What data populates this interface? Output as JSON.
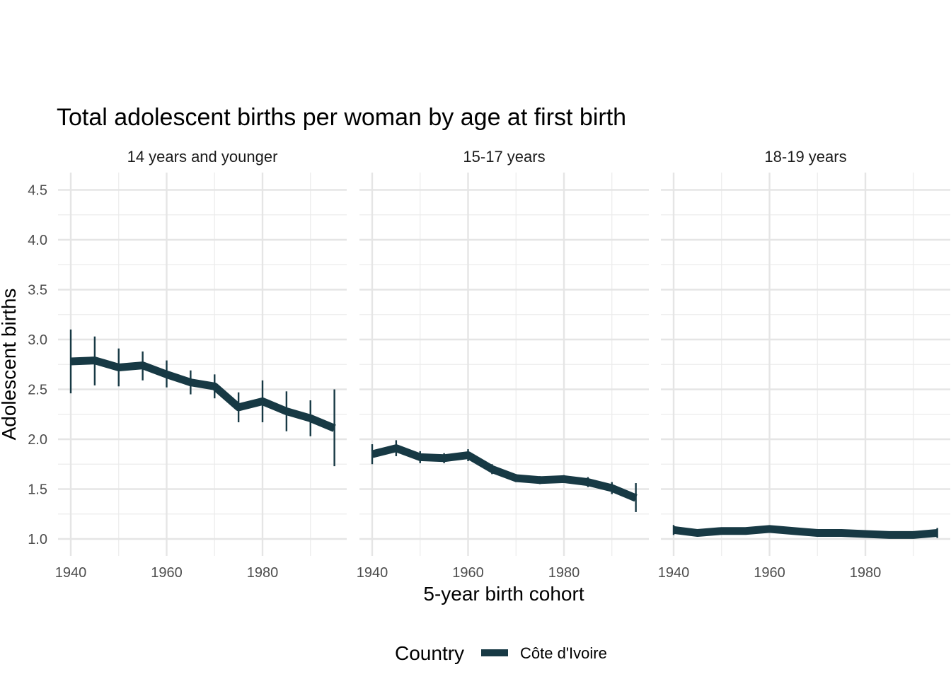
{
  "chart_data": {
    "type": "line",
    "title": "Total adolescent births per woman by age at first birth",
    "xlabel": "5-year birth cohort",
    "ylabel": "Adolescent births",
    "ylim": [
      0.85,
      4.65
    ],
    "yticks": [
      1.0,
      1.5,
      2.0,
      2.5,
      3.0,
      3.5,
      4.0,
      4.5
    ],
    "ytick_labels": [
      "1.0",
      "1.5",
      "2.0",
      "2.5",
      "3.0",
      "3.5",
      "4.0",
      "4.5"
    ],
    "xticks": [
      1940,
      1960,
      1980
    ],
    "xtick_labels": [
      "1940",
      "1960",
      "1980"
    ],
    "grid": true,
    "legend": {
      "title": "Country",
      "position": "bottom"
    },
    "color": "#173944",
    "panels": [
      {
        "label": "14 years and younger",
        "xlim": [
          1940,
          1993
        ],
        "series": [
          {
            "name": "Côte d'Ivoire",
            "x": [
              1940,
              1945,
              1950,
              1955,
              1960,
              1965,
              1970,
              1975,
              1980,
              1985,
              1990,
              1995
            ],
            "y": [
              2.78,
              2.79,
              2.72,
              2.74,
              2.65,
              2.57,
              2.53,
              2.32,
              2.38,
              2.28,
              2.21,
              2.11
            ],
            "lower": [
              2.46,
              2.54,
              2.53,
              2.59,
              2.52,
              2.45,
              2.41,
              2.17,
              2.17,
              2.08,
              2.03,
              1.73
            ],
            "upper": [
              3.1,
              3.03,
              2.91,
              2.88,
              2.79,
              2.69,
              2.65,
              2.47,
              2.59,
              2.48,
              2.39,
              2.5
            ]
          }
        ]
      },
      {
        "label": "15-17 years",
        "xlim": [
          1940,
          1993
        ],
        "series": [
          {
            "name": "Côte d'Ivoire",
            "x": [
              1940,
              1945,
              1950,
              1955,
              1960,
              1965,
              1970,
              1975,
              1980,
              1985,
              1990,
              1995
            ],
            "y": [
              1.85,
              1.91,
              1.82,
              1.81,
              1.84,
              1.7,
              1.61,
              1.59,
              1.6,
              1.57,
              1.51,
              1.41
            ],
            "lower": [
              1.75,
              1.83,
              1.76,
              1.76,
              1.78,
              1.65,
              1.57,
              1.55,
              1.56,
              1.52,
              1.45,
              1.27
            ],
            "upper": [
              1.95,
              1.99,
              1.88,
              1.86,
              1.9,
              1.75,
              1.65,
              1.63,
              1.64,
              1.62,
              1.57,
              1.56
            ]
          }
        ]
      },
      {
        "label": "18-19 years",
        "xlim": [
          1940,
          1996
        ],
        "series": [
          {
            "name": "Côte d'Ivoire",
            "x": [
              1940,
              1945,
              1950,
              1955,
              1960,
              1965,
              1970,
              1975,
              1980,
              1985,
              1990,
              1995
            ],
            "y": [
              1.09,
              1.06,
              1.08,
              1.08,
              1.1,
              1.08,
              1.06,
              1.06,
              1.05,
              1.04,
              1.04,
              1.06
            ],
            "lower": [
              1.04,
              1.04,
              1.06,
              1.06,
              1.08,
              1.06,
              1.04,
              1.04,
              1.03,
              1.02,
              1.02,
              1.01
            ],
            "upper": [
              1.14,
              1.08,
              1.1,
              1.1,
              1.12,
              1.1,
              1.08,
              1.08,
              1.07,
              1.06,
              1.06,
              1.11
            ]
          }
        ]
      }
    ]
  }
}
